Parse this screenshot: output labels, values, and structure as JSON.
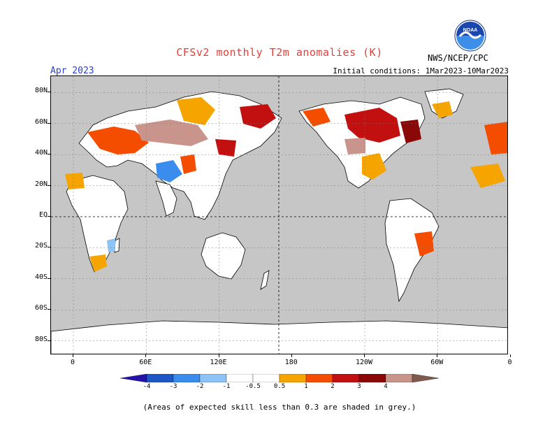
{
  "title": "CFSv2 monthly T2m anomalies (K)",
  "month": "Apr 2023",
  "initial_conditions": "Initial conditions: 1Mar2023-10Mar2023",
  "agency": "NWS/NCEP/CPC",
  "logo_text": "NOAA",
  "lat_labels": [
    "80N",
    "60N",
    "40N",
    "20N",
    "EQ",
    "20S",
    "40S",
    "60S",
    "80S"
  ],
  "lat_values": [
    80,
    60,
    40,
    20,
    0,
    -20,
    -40,
    -60,
    -80
  ],
  "lon_labels": [
    "0",
    "60E",
    "120E",
    "180",
    "120W",
    "60W",
    "0"
  ],
  "lon_values": [
    0,
    60,
    120,
    180,
    240,
    300,
    360
  ],
  "colorbar": {
    "labels": [
      "-4",
      "-3",
      "-2",
      "-1",
      "-0.5",
      "0.5",
      "1",
      "2",
      "3",
      "4"
    ],
    "colors": [
      "#2413a8",
      "#1f56c6",
      "#3b8ded",
      "#8ec3f5",
      "#ffffff",
      "#ffffff",
      "#f6a500",
      "#f44d00",
      "#c20f0f",
      "#8b0808",
      "#c9948b",
      "#805a4f"
    ]
  },
  "footnote": "(Areas of expected skill less than 0.3 are shaded in grey.)",
  "colors": {
    "ocean": "#c6c6c6",
    "land_neutral": "#ffffff",
    "coast": "#000000",
    "title": "#e0403a",
    "month": "#2a3ec8"
  }
}
